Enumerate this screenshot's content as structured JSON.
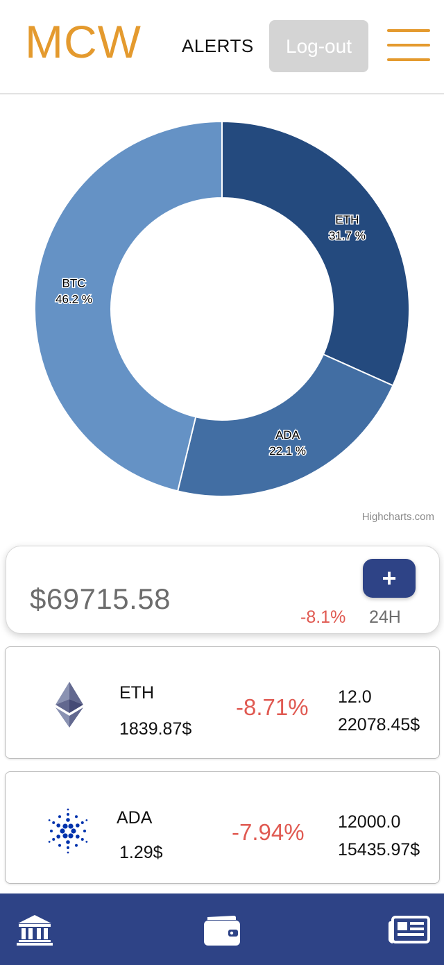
{
  "colors": {
    "brand_orange": "#E49A2E",
    "navy": "#2E4386",
    "negative_red": "#E05A52",
    "logout_bg": "#D4D4D4",
    "slice_eth": "#244A7E",
    "slice_ada": "#426EA3",
    "slice_btc": "#6592C5"
  },
  "header": {
    "logo": "MCW",
    "alerts_label": "ALERTS",
    "logout_label": "Log-out",
    "menu_icon": "hamburger-menu-icon"
  },
  "chart_data": {
    "type": "pie",
    "donut": true,
    "categories": [
      "ETH",
      "ADA",
      "BTC"
    ],
    "values": [
      31.7,
      22.1,
      46.2
    ],
    "labels": [
      "31.7 %",
      "22.1 %",
      "46.2 %"
    ],
    "colors": [
      "#244A7E",
      "#426EA3",
      "#6592C5"
    ],
    "start_angle_deg": 0,
    "credit": "Highcharts.com"
  },
  "portfolio": {
    "total_value": "$69715.58",
    "change": "-8.1%",
    "period": "24H",
    "add_label": "+"
  },
  "assets": [
    {
      "symbol": "ETH",
      "price": "1839.87$",
      "change": "-8.71%",
      "quantity": "12.0",
      "total": "22078.45$",
      "icon": "ethereum-icon"
    },
    {
      "symbol": "ADA",
      "price": "1.29$",
      "change": "-7.94%",
      "quantity": "12000.0",
      "total": "15435.97$",
      "icon": "cardano-icon"
    }
  ],
  "bottom_nav": {
    "items": [
      {
        "icon": "bank-icon"
      },
      {
        "icon": "wallet-icon"
      },
      {
        "icon": "newspaper-icon"
      }
    ]
  }
}
